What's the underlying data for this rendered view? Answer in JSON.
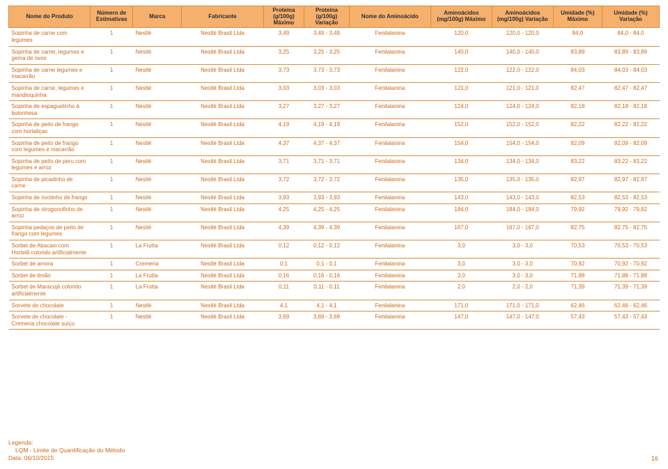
{
  "headers": [
    "Nome do Produto",
    "Número de Estimativas",
    "Marca",
    "Fabricante",
    "Proteína (g/100g) Máximo",
    "Proteína (g/100g) Variação",
    "Nome do Aminoácido",
    "Aminoácidos (mg/100g) Máximo",
    "Aminoácidos (mg/100g) Variação",
    "Umidade (%) Máximo",
    "Umidade (%) Variação"
  ],
  "rows": [
    {
      "name": "Sopinha de carne com legumes",
      "est": "1",
      "brand": "Nestlé",
      "fab": "Nestlé Brasil Ltda",
      "pm": "3,49",
      "pv": "3,49 - 3,49",
      "an": "Fenilalanina",
      "am": "120,0",
      "av": "120,0 - 120,0",
      "um": "84,0",
      "uv": "84,0 - 84,0"
    },
    {
      "name": "Sopinha de carne, legumes e gema de ovos",
      "est": "1",
      "brand": "Nestlé",
      "fab": "Nestlé Brasil Ltda",
      "pm": "3,25",
      "pv": "3,25 - 3,25",
      "an": "Fenilalanina",
      "am": "140,0",
      "av": "140,0 - 140,0",
      "um": "83,89",
      "uv": "83,89 - 83,89"
    },
    {
      "name": "Sopinha de carne legumes e macarrão",
      "est": "1",
      "brand": "Nestlé",
      "fab": "Nestlé Brasil Ltda",
      "pm": "3,73",
      "pv": "3,73 - 3,73",
      "an": "Fenilalanina",
      "am": "122,0",
      "av": "122,0 - 122,0",
      "um": "84,03",
      "uv": "84,03 - 84,03"
    },
    {
      "name": "Sopinha de carne, legumes e mandioquinha",
      "est": "1",
      "brand": "Nestlé",
      "fab": "Nestlé Brasil Ltda",
      "pm": "3,03",
      "pv": "3,03 - 3,03",
      "an": "Fenilalanina",
      "am": "121,0",
      "av": "121,0 - 121,0",
      "um": "82,47",
      "uv": "82,47 - 82,47"
    },
    {
      "name": "Sopinha de espaguetinho à bolonhesa",
      "est": "1",
      "brand": "Nestlé",
      "fab": "Nestlé Brasil Ltda",
      "pm": "3,27",
      "pv": "3,27 - 3,27",
      "an": "Fenilalanina",
      "am": "124,0",
      "av": "124,0 - 124,0",
      "um": "82,18",
      "uv": "82,18 - 82,18"
    },
    {
      "name": "Sopinha de peito de frango com hortaliças",
      "est": "1",
      "brand": "Nestlé",
      "fab": "Nestlé Brasil Ltda",
      "pm": "4,19",
      "pv": "4,19 - 4,19",
      "an": "Fenilalanina",
      "am": "152,0",
      "av": "152,0 - 152,0",
      "um": "82,22",
      "uv": "82,22 - 82,22"
    },
    {
      "name": "Sopinha de peito de frango com legumes e macarrão",
      "est": "1",
      "brand": "Nestlé",
      "fab": "Nestlé Brasil Ltda",
      "pm": "4,37",
      "pv": "4,37 - 4,37",
      "an": "Fenilalanina",
      "am": "154,0",
      "av": "154,0 - 154,0",
      "um": "82,09",
      "uv": "82,09 - 82,09"
    },
    {
      "name": "Sopinha de peito de peru com legumes e arroz",
      "est": "1",
      "brand": "Nestlé",
      "fab": "Nestlé Brasil Ltda",
      "pm": "3,71",
      "pv": "3,71 - 3,71",
      "an": "Fenilalanina",
      "am": "134,0",
      "av": "134,0 - 134,0",
      "um": "83,22",
      "uv": "83,22 - 83,22"
    },
    {
      "name": "Sopinha de picadinho de carne",
      "est": "1",
      "brand": "Nestlé",
      "fab": "Nestlé Brasil Ltda",
      "pm": "3,72",
      "pv": "3,72 - 3,72",
      "an": "Fenilalanina",
      "am": "135,0",
      "av": "135,0 - 135,0",
      "um": "82,97",
      "uv": "82,97 - 82,97"
    },
    {
      "name": "Sopinha de risotinho de frango",
      "est": "1",
      "brand": "Nestlé",
      "fab": "Nestlé Brasil Ltda",
      "pm": "3,93",
      "pv": "3,93 - 3,93",
      "an": "Fenilalanina",
      "am": "143,0",
      "av": "143,0 - 143,0",
      "um": "82,53",
      "uv": "82,53 - 82,53"
    },
    {
      "name": "Sopinha de strogonofinho de arroz",
      "est": "1",
      "brand": "Nestlé",
      "fab": "Nestlé Brasil Ltda",
      "pm": "4,25",
      "pv": "4,25 - 4,25",
      "an": "Fenilalanina",
      "am": "184,0",
      "av": "184,0 - 184,0",
      "um": "79,92",
      "uv": "79,92 - 79,92"
    },
    {
      "name": "Sopinha pedaços de peito de frango com legumes",
      "est": "1",
      "brand": "Nestlé",
      "fab": "Nestlé Brasil Ltda",
      "pm": "4,39",
      "pv": "4,39 - 4,39",
      "an": "Fenilalanina",
      "am": "167,0",
      "av": "167,0 - 167,0",
      "um": "82,75",
      "uv": "82,75 - 82,75"
    },
    {
      "name": "Sorbet de Abacaxi com Hortelã colorido artificialmente",
      "est": "1",
      "brand": "La Frutta",
      "fab": "Nestlé Brasil Ltda",
      "pm": "0,12",
      "pv": "0,12 - 0,12",
      "an": "Fenilalanina",
      "am": "3,0",
      "av": "3,0 - 3,0",
      "um": "70,53",
      "uv": "70,53 - 70,53"
    },
    {
      "name": "Sorbet de amora",
      "est": "1",
      "brand": "Cremeria",
      "fab": "Nestlé Brasil Ltda",
      "pm": "0,1",
      "pv": "0,1 - 0,1",
      "an": "Fenilalanina",
      "am": "3,0",
      "av": "3,0 - 3,0",
      "um": "70,92",
      "uv": "70,92 - 70,92"
    },
    {
      "name": "Sorbet de limão",
      "est": "1",
      "brand": "La Frutta",
      "fab": "Nestlé Brasil Ltda",
      "pm": "0,16",
      "pv": "0,16 - 0,16",
      "an": "Fenilalanina",
      "am": "3,0",
      "av": "3,0 - 3,0",
      "um": "71,88",
      "uv": "71,88 - 71,88"
    },
    {
      "name": "Sorbet de Maracujá colorido artificialmente",
      "est": "1",
      "brand": "La Frutta",
      "fab": "Nestlé Brasil Ltda",
      "pm": "0,11",
      "pv": "0,11 - 0,11",
      "an": "Fenilalanina",
      "am": "2,0",
      "av": "2,0 - 2,0",
      "um": "71,39",
      "uv": "71,39 - 71,39"
    },
    {
      "name": "Sorvete de chocolate",
      "est": "1",
      "brand": "Nestlé",
      "fab": "Nestlé Brasil Ltda",
      "pm": "4,1",
      "pv": "4,1 - 4,1",
      "an": "Fenilalanina",
      "am": "171,0",
      "av": "171,0 - 171,0",
      "um": "62,46",
      "uv": "62,46 - 62,46"
    },
    {
      "name": "Sorvete de chocolate - Cremeria chocolate suíço",
      "est": "1",
      "brand": "Nestlé",
      "fab": "Nestlé Brasil Ltda",
      "pm": "3,69",
      "pv": "3,69 - 3,69",
      "an": "Fenilalanina",
      "am": "147,0",
      "av": "147,0 - 147,0",
      "um": "57,43",
      "uv": "57,43 - 57,43"
    }
  ],
  "legend": {
    "title": "Legenda:",
    "line1": "LQM - Limite de Quantificação do Método",
    "date": "Data: 06/10/2015"
  },
  "page": "16"
}
